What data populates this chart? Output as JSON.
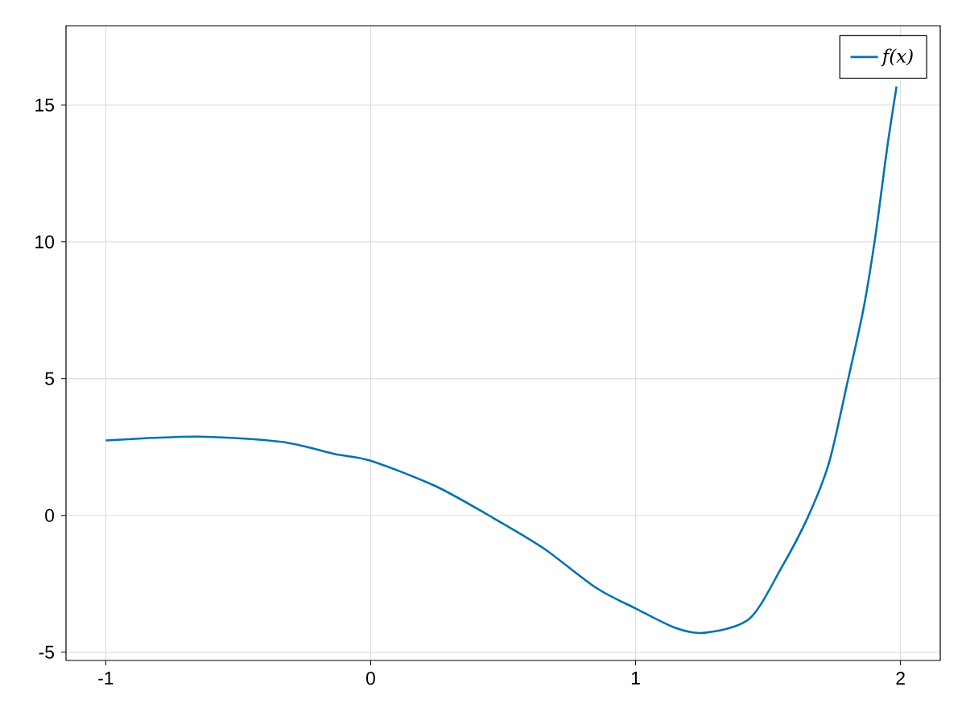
{
  "chart_data": {
    "type": "line",
    "x": [
      -1,
      -0.653,
      -0.337,
      -0.137,
      0,
      0.243,
      0.446,
      0.648,
      0.85,
      1.0,
      1.15,
      1.26,
      1.43,
      1.55,
      1.65,
      1.73,
      1.8,
      1.86,
      1.905,
      1.95,
      1.985
    ],
    "series": [
      {
        "name": "f(x)",
        "color": "#0072b2",
        "values": [
          2.74,
          2.88,
          2.69,
          2.25,
          2.0,
          1.08,
          0.0,
          -1.17,
          -2.64,
          -3.4,
          -4.11,
          -4.29,
          -3.77,
          -1.92,
          -0.07,
          1.92,
          4.88,
          7.54,
          10.2,
          13.46,
          15.68
        ]
      }
    ],
    "xlim": [
      -1.15,
      2.15
    ],
    "ylim": [
      -5.3,
      17.9
    ],
    "xticks": [
      -1,
      0,
      1,
      2
    ],
    "yticks": [
      -5,
      0,
      5,
      10,
      15
    ],
    "grid": true,
    "legend": "top right"
  }
}
